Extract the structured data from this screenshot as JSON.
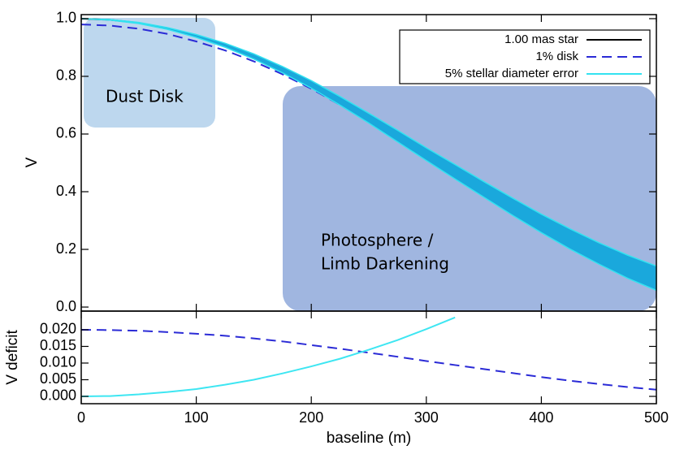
{
  "chart_data": [
    {
      "type": "line",
      "ylabel": "V",
      "xlim": [
        0,
        500
      ],
      "ylim": [
        -0.014,
        1.014
      ],
      "xticks": [
        0,
        100,
        200,
        300,
        400,
        500
      ],
      "yticks": [
        {
          "value": 0,
          "label": "0.0"
        },
        0.2,
        0.4,
        0.6,
        0.8,
        {
          "value": 1,
          "label": "1.0"
        }
      ],
      "legend": "upper right",
      "x": [
        0,
        25,
        50,
        75,
        100,
        125,
        150,
        175,
        200,
        225,
        250,
        275,
        300,
        325,
        350,
        375,
        400,
        425,
        450,
        475,
        500
      ],
      "series": [
        {
          "name": "1.00 mas star",
          "color": "#000000",
          "linestyle": "solid",
          "values": [
            1.0,
            0.996,
            0.985,
            0.966,
            0.94,
            0.908,
            0.869,
            0.823,
            0.772,
            0.715,
            0.655,
            0.593,
            0.53,
            0.469,
            0.408,
            0.348,
            0.29,
            0.236,
            0.186,
            0.14,
            0.1
          ]
        },
        {
          "name": "1% disk",
          "color": "#2b2bd6",
          "linestyle": "dashed",
          "values": [
            0.98,
            0.976,
            0.965,
            0.947,
            0.921,
            0.89,
            0.852,
            0.807,
            0.757,
            0.701,
            0.642,
            0.581,
            0.519,
            0.46,
            0.4,
            0.341,
            0.284,
            0.231,
            0.182,
            0.137,
            0.098
          ]
        },
        {
          "name": "5% stellar diameter error",
          "type": "band",
          "color": "#33e2f0",
          "fill": "#1aa8dc",
          "upper": [
            1.0,
            0.997,
            0.987,
            0.969,
            0.945,
            0.915,
            0.878,
            0.834,
            0.785,
            0.73,
            0.672,
            0.613,
            0.552,
            0.494,
            0.435,
            0.378,
            0.322,
            0.271,
            0.223,
            0.18,
            0.142
          ],
          "lower": [
            1.0,
            0.995,
            0.983,
            0.963,
            0.935,
            0.901,
            0.86,
            0.812,
            0.759,
            0.7,
            0.638,
            0.573,
            0.508,
            0.444,
            0.381,
            0.318,
            0.258,
            0.201,
            0.149,
            0.1,
            0.058
          ]
        }
      ],
      "annotations": [
        {
          "text": "Dust Disk"
        },
        {
          "lines": [
            "Photosphere /",
            "Limb Darkening"
          ]
        }
      ]
    },
    {
      "type": "line",
      "xlabel": "baseline (m)",
      "ylabel": "V deficit",
      "xlim": [
        0,
        500
      ],
      "ylim": [
        -0.0022,
        0.0256
      ],
      "xticks": [
        0,
        100,
        200,
        300,
        400,
        500
      ],
      "yticks": [
        {
          "value": 0,
          "label": "0.000"
        },
        {
          "value": 0.005,
          "label": "0.005"
        },
        {
          "value": 0.01,
          "label": "0.010"
        },
        {
          "value": 0.015,
          "label": "0.015"
        },
        {
          "value": 0.02,
          "label": "0.020"
        }
      ],
      "x": [
        0,
        25,
        50,
        75,
        100,
        125,
        150,
        175,
        200,
        225,
        250,
        275,
        300,
        325,
        350,
        375,
        400,
        425,
        450,
        475,
        500
      ],
      "series": [
        {
          "color": "#2b2bd6",
          "linestyle": "dashed",
          "values": [
            0.02,
            0.0199,
            0.0197,
            0.0193,
            0.0188,
            0.0182,
            0.0174,
            0.0165,
            0.0154,
            0.0143,
            0.0131,
            0.0119,
            0.0106,
            0.0094,
            0.0082,
            0.007,
            0.0058,
            0.0047,
            0.0037,
            0.0028,
            0.002
          ]
        },
        {
          "color": "#3ee6f2",
          "linestyle": "solid",
          "values": [
            0,
            0.0001,
            0.0006,
            0.0013,
            0.0022,
            0.0035,
            0.005,
            0.0069,
            0.009,
            0.0113,
            0.014,
            0.0169,
            0.0202,
            0.0237,
            null,
            null,
            null,
            null,
            null,
            null,
            null
          ]
        }
      ]
    }
  ]
}
